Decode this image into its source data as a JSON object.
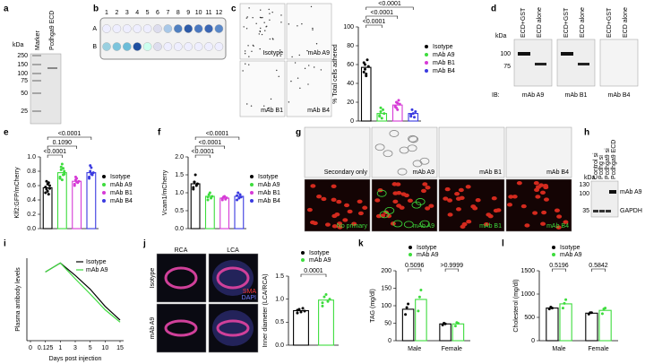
{
  "panel_labels": [
    "a",
    "b",
    "c",
    "d",
    "e",
    "f",
    "g",
    "h",
    "i",
    "j",
    "k",
    "l"
  ],
  "gel_a": {
    "unit": "kDa",
    "lanes": [
      "Marker",
      "Pcdhga9 ECD"
    ],
    "markers": [
      250,
      150,
      100,
      75,
      50,
      25
    ]
  },
  "plate_b": {
    "columns": [
      1,
      2,
      3,
      4,
      5,
      6,
      7,
      8,
      9,
      10,
      11,
      12
    ],
    "rows": [
      "A",
      "B"
    ]
  },
  "images_c": [
    "Isotype",
    "mAb A9",
    "mAb B1",
    "mAb B4"
  ],
  "blot_d": {
    "unit": "kDa",
    "markers": [
      100,
      75
    ],
    "lanes": [
      "ECD+GST",
      "ECD alone"
    ],
    "ib": "IB:",
    "antibodies": [
      "mAb A9",
      "mAb B1",
      "mAb B4"
    ]
  },
  "images_g": {
    "top": [
      "Secondary only",
      "mAb A9",
      "mAb B1",
      "mAb B4"
    ],
    "bottom": [
      "No primary",
      "mAb A9",
      "mAb B1",
      "mAb B4"
    ]
  },
  "blot_h": {
    "unit": "kDa",
    "lanes": [
      "Control si",
      "Pcdhg si",
      "Pcdhga9 si",
      "Pcdhga9 ECD"
    ],
    "markers": [
      130,
      100,
      35
    ],
    "bands": [
      "mAb A9",
      "GAPDH"
    ]
  },
  "images_j": {
    "columns": [
      "RCA",
      "LCA"
    ],
    "rows": [
      "Isotype",
      "mAb A9"
    ],
    "stains": [
      "SMA",
      "DAPI"
    ]
  },
  "chart_data": [
    {
      "type": "bar",
      "ylabel": "% Total cells adhered",
      "ylim": [
        0,
        100
      ],
      "yticks": [
        0,
        20,
        40,
        60,
        80,
        100
      ],
      "legend": "right",
      "series": [
        {
          "name": "Isotype",
          "color": "#000000",
          "values": [
            57
          ],
          "points": [
            [
              62,
              55,
              48,
              65,
              58,
              52,
              60,
              50
            ]
          ]
        },
        {
          "name": "mAb A9",
          "color": "#3ddc3d",
          "values": [
            8
          ],
          "points": [
            [
              5,
              10,
              3,
              12,
              8,
              6,
              14
            ]
          ]
        },
        {
          "name": "mAb B1",
          "color": "#d63ad6",
          "values": [
            17
          ],
          "points": [
            [
              15,
              20,
              12,
              22,
              18,
              16,
              14,
              19
            ]
          ]
        },
        {
          "name": "mAb B4",
          "color": "#3a3ae0",
          "values": [
            8
          ],
          "points": [
            [
              5,
              12,
              8,
              4,
              10,
              7
            ]
          ]
        }
      ],
      "annotations": [
        "<0.0001",
        "<0.0001",
        "<0.0001"
      ]
    },
    {
      "type": "bar",
      "ylabel": "Klf2:GFP/mCherry",
      "ylim": [
        0,
        1
      ],
      "yticks": [
        {
          "value": 0,
          "label": "0.0"
        },
        0.2,
        0.4,
        0.6,
        0.8,
        {
          "value": 1,
          "label": "1.0"
        }
      ],
      "legend": "right",
      "series": [
        {
          "name": "Isotype",
          "color": "#000000",
          "values": [
            0.57
          ],
          "points": [
            [
              0.5,
              0.55,
              0.62,
              0.48,
              0.6,
              0.58,
              0.66,
              0.52,
              0.64,
              0.56
            ]
          ]
        },
        {
          "name": "mAb A9",
          "color": "#3ddc3d",
          "values": [
            0.78
          ],
          "points": [
            [
              0.7,
              0.82,
              0.9,
              0.75,
              0.8,
              0.72,
              0.86,
              0.68,
              0.84,
              0.76
            ]
          ]
        },
        {
          "name": "mAb B1",
          "color": "#d63ad6",
          "values": [
            0.66
          ],
          "points": [
            [
              0.62,
              0.68,
              0.7,
              0.64,
              0.66,
              0.6,
              0.72,
              0.65
            ]
          ]
        },
        {
          "name": "mAb B4",
          "color": "#3a3ae0",
          "values": [
            0.78
          ],
          "points": [
            [
              0.72,
              0.8,
              0.85,
              0.75,
              0.78,
              0.7,
              0.88,
              0.76
            ]
          ]
        }
      ],
      "annotations": [
        "<0.0001",
        "0.1090",
        "<0.0001"
      ]
    },
    {
      "type": "bar",
      "ylabel": "Vcam1/mCherry",
      "ylim": [
        0,
        2
      ],
      "yticks": [
        {
          "value": 0,
          "label": "0.0"
        },
        0.5,
        {
          "value": 1,
          "label": "1.0"
        },
        1.5,
        {
          "value": 2,
          "label": "2.0"
        }
      ],
      "legend": "right",
      "series": [
        {
          "name": "Isotype",
          "color": "#000000",
          "values": [
            1.25
          ],
          "points": [
            [
              1.1,
              1.3,
              1.5,
              1.2,
              1.25,
              1.15,
              1.3
            ]
          ]
        },
        {
          "name": "mAb A9",
          "color": "#3ddc3d",
          "values": [
            0.9
          ],
          "points": [
            [
              0.8,
              0.95,
              1.0,
              0.85,
              0.9,
              0.88
            ]
          ]
        },
        {
          "name": "mAb B1",
          "color": "#d63ad6",
          "values": [
            0.85
          ],
          "points": [
            [
              0.8,
              0.88,
              0.9,
              0.82,
              0.86,
              0.84
            ]
          ]
        },
        {
          "name": "mAb B4",
          "color": "#3a3ae0",
          "values": [
            0.9
          ],
          "points": [
            [
              0.8,
              1.0,
              0.85,
              0.95,
              0.88,
              0.92
            ]
          ]
        }
      ],
      "annotations": [
        "<0.0001",
        "<0.0001",
        "<0.0001"
      ]
    },
    {
      "type": "line",
      "ylabel": "Plasma antibody levels",
      "xlabel": "Days post injection",
      "categories": [
        "0",
        "0.125",
        "1",
        "3",
        "5",
        "10",
        "15"
      ],
      "ylim": [
        0,
        120
      ],
      "legend": "top-right",
      "series": [
        {
          "name": "Isotype",
          "color": "#000000",
          "values": [
            null,
            100,
            113,
            95,
            75,
            50,
            30
          ]
        },
        {
          "name": "mAb A9",
          "color": "#3ddc3d",
          "values": [
            null,
            100,
            113,
            90,
            68,
            45,
            27
          ]
        }
      ]
    },
    {
      "type": "bar",
      "ylabel": "Inner diameter (LCA/RCA)",
      "ylim": [
        0,
        1.5
      ],
      "yticks": [
        {
          "value": 0,
          "label": "0.0"
        },
        0.5,
        {
          "value": 1,
          "label": "1.0"
        },
        1.5
      ],
      "legend": "top",
      "series": [
        {
          "name": "Isotype",
          "color": "#000000",
          "values": [
            0.75
          ],
          "points": [
            [
              0.7,
              0.78,
              0.72,
              0.8,
              0.74,
              0.76
            ]
          ]
        },
        {
          "name": "mAb A9",
          "color": "#3ddc3d",
          "values": [
            0.98
          ],
          "points": [
            [
              0.85,
              1.05,
              1.1,
              0.95,
              1.0,
              0.92
            ]
          ]
        }
      ],
      "annotations": [
        "0.0001"
      ]
    },
    {
      "type": "bar",
      "ylabel": "TAG (mg/dl)",
      "ylim": [
        0,
        200
      ],
      "yticks": [
        0,
        50,
        100,
        150,
        200
      ],
      "legend": "top",
      "categories": [
        "Male",
        "Female"
      ],
      "series": [
        {
          "name": "Isotype",
          "color": "#000000",
          "values": [
            90,
            48
          ],
          "points": [
            [
              75,
              95,
              105
            ],
            [
              45,
              50,
              48
            ]
          ]
        },
        {
          "name": "mAb A9",
          "color": "#3ddc3d",
          "values": [
            118,
            48
          ],
          "points": [
            [
              85,
              125,
              145
            ],
            [
              42,
              52,
              50
            ]
          ]
        }
      ],
      "annotations": [
        "0.5096",
        ">0.9999"
      ]
    },
    {
      "type": "bar",
      "ylabel": "Cholesterol (mg/dl)",
      "ylim": [
        0,
        1500
      ],
      "yticks": [
        0,
        500,
        1000,
        1500
      ],
      "legend": "top",
      "categories": [
        "Male",
        "Female"
      ],
      "series": [
        {
          "name": "Isotype",
          "color": "#000000",
          "values": [
            700,
            590
          ],
          "points": [
            [
              680,
              720,
              700
            ],
            [
              570,
              600,
              600
            ]
          ]
        },
        {
          "name": "mAb A9",
          "color": "#3ddc3d",
          "values": [
            790,
            650
          ],
          "points": [
            [
              700,
              800,
              880
            ],
            [
              580,
              680,
              700
            ]
          ]
        }
      ],
      "annotations": [
        "0.5196",
        "0.5842"
      ]
    }
  ]
}
